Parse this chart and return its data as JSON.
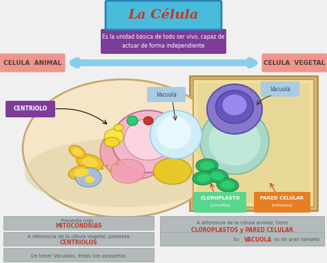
{
  "background_color": "#f0f0f0",
  "title": "La Célula",
  "title_bg": "#4abcdb",
  "title_border": "#2980b9",
  "title_color": "#c0392b",
  "subtitle": "Es la unidad básica de todo ser vivo, capaz de\nactuar de forma independiente",
  "subtitle_bg": "#7d3c98",
  "subtitle_color": "white",
  "left_label": "CELULA  ANIMAL",
  "right_label": "CELULA  VEGETAL",
  "label_bg": "#f1948a",
  "label_border": "#e8a0a0",
  "arrow_color": "#87ceeb",
  "info_bg": "#b2babb",
  "info_border": "#999999",
  "info_normal_color": "#555555",
  "info_bold_color": "#c0392b",
  "centriolo_bg": "#7d3c98",
  "vacuola_bg": "#a9cce3",
  "cloroplasto_bg": "#58d68d",
  "pared_bg": "#e67e22",
  "cell_fill": "#f5e6c8",
  "cell_border": "#c8a870",
  "plant_fill": "#f0dfa0",
  "plant_border": "#c8a050"
}
